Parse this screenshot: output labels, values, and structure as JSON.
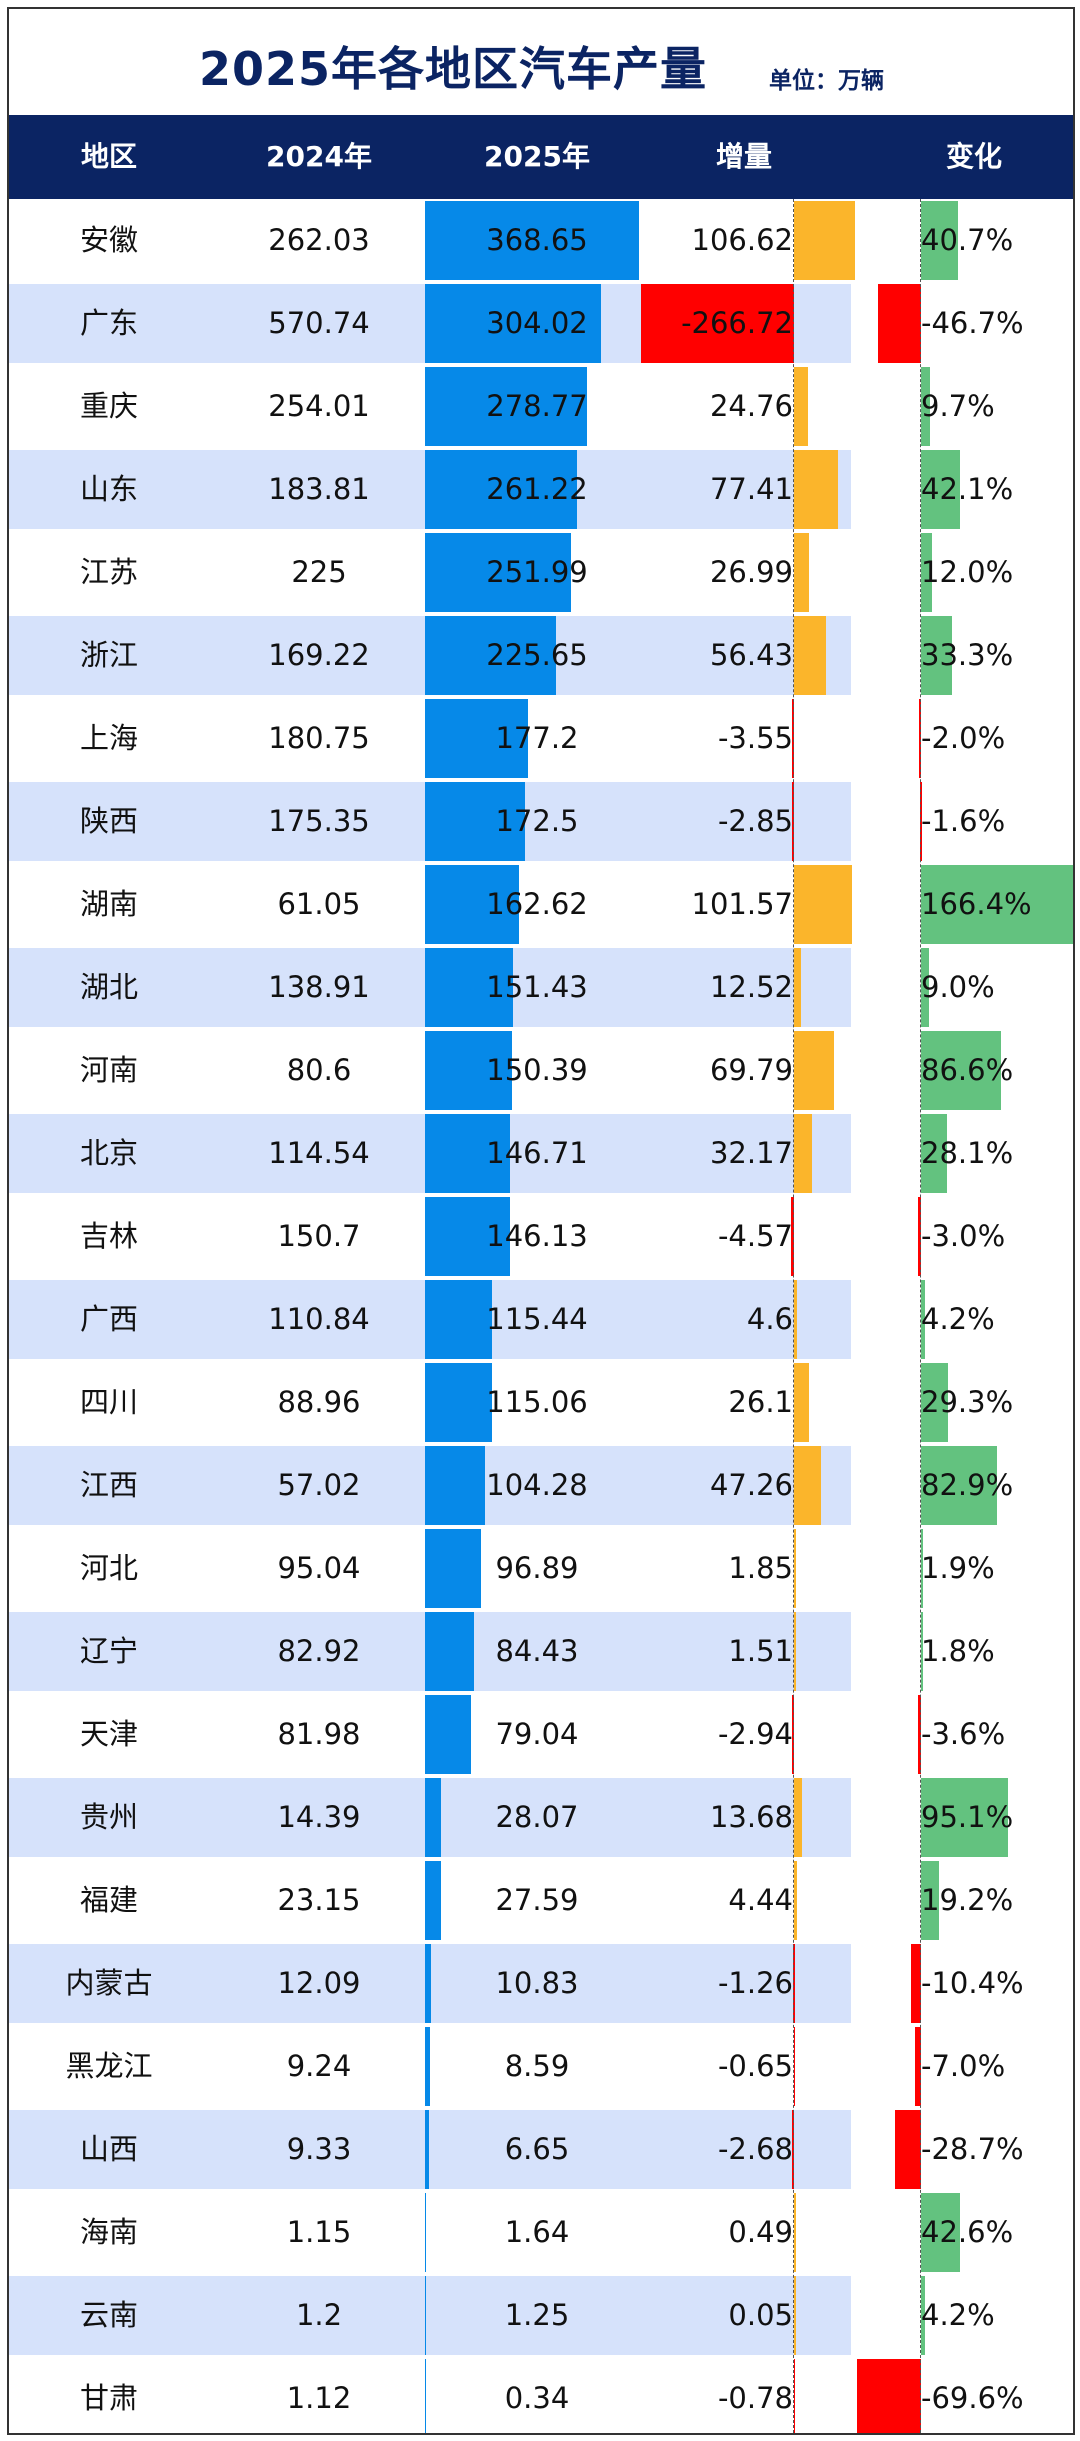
{
  "title": "2025年各地区汽车产量",
  "unit": "单位：万辆",
  "colors": {
    "header": "#0b2463",
    "bar2025": "#0689e8",
    "increase": "#fbb52b",
    "decrease": "#ff0000",
    "change_up": "#63c27f",
    "stripe": "#d6e2fb"
  },
  "chart_data": {
    "type": "table",
    "columns": [
      "地区",
      "2024年",
      "2025年",
      "增量",
      "变化"
    ],
    "rows": [
      [
        "安徽",
        "262.03",
        "368.65",
        "106.62",
        "40.7%"
      ],
      [
        "广东",
        "570.74",
        "304.02",
        "-266.72",
        "-46.7%"
      ],
      [
        "重庆",
        "254.01",
        "278.77",
        "24.76",
        "9.7%"
      ],
      [
        "山东",
        "183.81",
        "261.22",
        "77.41",
        "42.1%"
      ],
      [
        "江苏",
        "225",
        "251.99",
        "26.99",
        "12.0%"
      ],
      [
        "浙江",
        "169.22",
        "225.65",
        "56.43",
        "33.3%"
      ],
      [
        "上海",
        "180.75",
        "177.2",
        "-3.55",
        "-2.0%"
      ],
      [
        "陕西",
        "175.35",
        "172.5",
        "-2.85",
        "-1.6%"
      ],
      [
        "湖南",
        "61.05",
        "162.62",
        "101.57",
        "166.4%"
      ],
      [
        "湖北",
        "138.91",
        "151.43",
        "12.52",
        "9.0%"
      ],
      [
        "河南",
        "80.6",
        "150.39",
        "69.79",
        "86.6%"
      ],
      [
        "北京",
        "114.54",
        "146.71",
        "32.17",
        "28.1%"
      ],
      [
        "吉林",
        "150.7",
        "146.13",
        "-4.57",
        "-3.0%"
      ],
      [
        "广西",
        "110.84",
        "115.44",
        "4.6",
        "4.2%"
      ],
      [
        "四川",
        "88.96",
        "115.06",
        "26.1",
        "29.3%"
      ],
      [
        "江西",
        "57.02",
        "104.28",
        "47.26",
        "82.9%"
      ],
      [
        "河北",
        "95.04",
        "96.89",
        "1.85",
        "1.9%"
      ],
      [
        "辽宁",
        "82.92",
        "84.43",
        "1.51",
        "1.8%"
      ],
      [
        "天津",
        "81.98",
        "79.04",
        "-2.94",
        "-3.6%"
      ],
      [
        "贵州",
        "14.39",
        "28.07",
        "13.68",
        "95.1%"
      ],
      [
        "福建",
        "23.15",
        "27.59",
        "4.44",
        "19.2%"
      ],
      [
        "内蒙古",
        "12.09",
        "10.83",
        "-1.26",
        "-10.4%"
      ],
      [
        "黑龙江",
        "9.24",
        "8.59",
        "-0.65",
        "-7.0%"
      ],
      [
        "山西",
        "9.33",
        "6.65",
        "-2.68",
        "-28.7%"
      ],
      [
        "海南",
        "1.15",
        "1.64",
        "0.49",
        "42.6%"
      ],
      [
        "云南",
        "1.2",
        "1.25",
        "0.05",
        "4.2%"
      ],
      [
        "甘肃",
        "1.12",
        "0.34",
        "-0.78",
        "-69.6%"
      ]
    ]
  }
}
